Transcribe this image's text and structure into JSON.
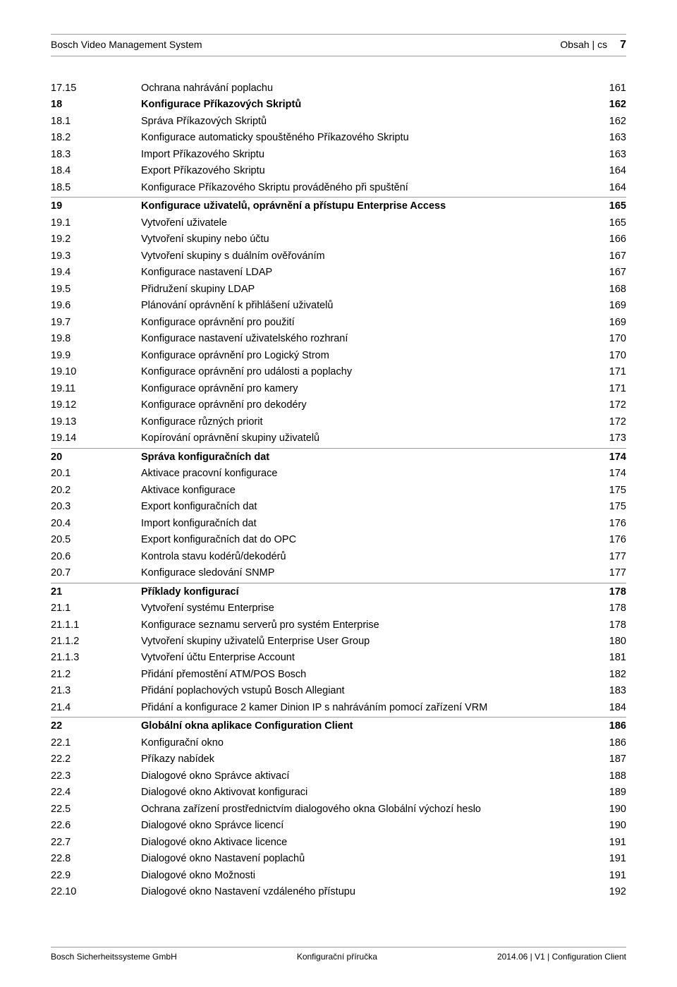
{
  "header": {
    "left": "Bosch Video Management System",
    "right_label": "Obsah | cs",
    "page_number": "7"
  },
  "toc": [
    {
      "num": "17.15",
      "title": "Ochrana nahrávání poplachu",
      "page": "161",
      "bold": false,
      "sep_after": false
    },
    {
      "num": "18",
      "title": "Konfigurace Příkazových Skriptů",
      "page": "162",
      "bold": true,
      "sep_after": false
    },
    {
      "num": "18.1",
      "title": "Správa Příkazových Skriptů",
      "page": "162",
      "bold": false,
      "sep_after": false
    },
    {
      "num": "18.2",
      "title": "Konfigurace automaticky spouštěného Příkazového Skriptu",
      "page": "163",
      "bold": false,
      "sep_after": false
    },
    {
      "num": "18.3",
      "title": "Import Příkazového Skriptu",
      "page": "163",
      "bold": false,
      "sep_after": false
    },
    {
      "num": "18.4",
      "title": "Export Příkazového Skriptu",
      "page": "164",
      "bold": false,
      "sep_after": false
    },
    {
      "num": "18.5",
      "title": "Konfigurace Příkazového Skriptu prováděného při spuštění",
      "page": "164",
      "bold": false,
      "sep_after": true
    },
    {
      "num": "19",
      "title": "Konfigurace uživatelů, oprávnění a přístupu Enterprise Access",
      "page": "165",
      "bold": true,
      "sep_after": false
    },
    {
      "num": "19.1",
      "title": "Vytvoření uživatele",
      "page": "165",
      "bold": false,
      "sep_after": false
    },
    {
      "num": "19.2",
      "title": "Vytvoření skupiny nebo účtu",
      "page": "166",
      "bold": false,
      "sep_after": false
    },
    {
      "num": "19.3",
      "title": "Vytvoření skupiny s duálním ověřováním",
      "page": "167",
      "bold": false,
      "sep_after": false
    },
    {
      "num": "19.4",
      "title": "Konfigurace nastavení LDAP",
      "page": "167",
      "bold": false,
      "sep_after": false
    },
    {
      "num": "19.5",
      "title": "Přidružení skupiny LDAP",
      "page": "168",
      "bold": false,
      "sep_after": false
    },
    {
      "num": "19.6",
      "title": "Plánování oprávnění k přihlášení uživatelů",
      "page": "169",
      "bold": false,
      "sep_after": false
    },
    {
      "num": "19.7",
      "title": "Konfigurace oprávnění pro použití",
      "page": "169",
      "bold": false,
      "sep_after": false
    },
    {
      "num": "19.8",
      "title": "Konfigurace nastavení uživatelského rozhraní",
      "page": "170",
      "bold": false,
      "sep_after": false
    },
    {
      "num": "19.9",
      "title": "Konfigurace oprávnění pro Logický Strom",
      "page": "170",
      "bold": false,
      "sep_after": false
    },
    {
      "num": "19.10",
      "title": "Konfigurace oprávnění pro události a poplachy",
      "page": "171",
      "bold": false,
      "sep_after": false
    },
    {
      "num": "19.11",
      "title": "Konfigurace oprávnění pro kamery",
      "page": "171",
      "bold": false,
      "sep_after": false
    },
    {
      "num": "19.12",
      "title": "Konfigurace oprávnění pro dekodéry",
      "page": "172",
      "bold": false,
      "sep_after": false
    },
    {
      "num": "19.13",
      "title": "Konfigurace různých priorit",
      "page": "172",
      "bold": false,
      "sep_after": false
    },
    {
      "num": "19.14",
      "title": "Kopírování oprávnění skupiny uživatelů",
      "page": "173",
      "bold": false,
      "sep_after": true
    },
    {
      "num": "20",
      "title": "Správa konfiguračních dat",
      "page": "174",
      "bold": true,
      "sep_after": false
    },
    {
      "num": "20.1",
      "title": "Aktivace pracovní konfigurace",
      "page": "174",
      "bold": false,
      "sep_after": false
    },
    {
      "num": "20.2",
      "title": "Aktivace konfigurace",
      "page": "175",
      "bold": false,
      "sep_after": false
    },
    {
      "num": "20.3",
      "title": "Export konfiguračních dat",
      "page": "175",
      "bold": false,
      "sep_after": false
    },
    {
      "num": "20.4",
      "title": "Import konfiguračních dat",
      "page": "176",
      "bold": false,
      "sep_after": false
    },
    {
      "num": "20.5",
      "title": "Export konfiguračních dat do OPC",
      "page": "176",
      "bold": false,
      "sep_after": false
    },
    {
      "num": "20.6",
      "title": "Kontrola stavu kodérů/dekodérů",
      "page": "177",
      "bold": false,
      "sep_after": false
    },
    {
      "num": "20.7",
      "title": "Konfigurace sledování SNMP",
      "page": "177",
      "bold": false,
      "sep_after": true
    },
    {
      "num": "21",
      "title": "Příklady konfigurací",
      "page": "178",
      "bold": true,
      "sep_after": false
    },
    {
      "num": "21.1",
      "title": "Vytvoření systému Enterprise",
      "page": "178",
      "bold": false,
      "sep_after": false
    },
    {
      "num": "21.1.1",
      "title": "Konfigurace seznamu serverů pro systém Enterprise",
      "page": "178",
      "bold": false,
      "sep_after": false
    },
    {
      "num": "21.1.2",
      "title": "Vytvoření skupiny uživatelů Enterprise User Group",
      "page": "180",
      "bold": false,
      "sep_after": false
    },
    {
      "num": "21.1.3",
      "title": "Vytvoření účtu Enterprise Account",
      "page": "181",
      "bold": false,
      "sep_after": false
    },
    {
      "num": "21.2",
      "title": "Přidání přemostění ATM/POS Bosch",
      "page": "182",
      "bold": false,
      "sep_after": false
    },
    {
      "num": "21.3",
      "title": "Přidání poplachových vstupů Bosch Allegiant",
      "page": "183",
      "bold": false,
      "sep_after": false
    },
    {
      "num": "21.4",
      "title": "Přidání a konfigurace 2 kamer Dinion IP s nahráváním pomocí zařízení VRM",
      "page": "184",
      "bold": false,
      "sep_after": true
    },
    {
      "num": "22",
      "title": "Globální okna aplikace Configuration Client",
      "page": "186",
      "bold": true,
      "sep_after": false
    },
    {
      "num": "22.1",
      "title": "Konfigurační okno",
      "page": "186",
      "bold": false,
      "sep_after": false
    },
    {
      "num": "22.2",
      "title": "Příkazy nabídek",
      "page": "187",
      "bold": false,
      "sep_after": false
    },
    {
      "num": "22.3",
      "title": "Dialogové okno Správce aktivací",
      "page": "188",
      "bold": false,
      "sep_after": false
    },
    {
      "num": "22.4",
      "title": "Dialogové okno Aktivovat konfiguraci",
      "page": "189",
      "bold": false,
      "sep_after": false
    },
    {
      "num": "22.5",
      "title": "Ochrana zařízení prostřednictvím dialogového okna Globální výchozí heslo",
      "page": "190",
      "bold": false,
      "sep_after": false
    },
    {
      "num": "22.6",
      "title": "Dialogové okno Správce licencí",
      "page": "190",
      "bold": false,
      "sep_after": false
    },
    {
      "num": "22.7",
      "title": "Dialogové okno Aktivace licence",
      "page": "191",
      "bold": false,
      "sep_after": false
    },
    {
      "num": "22.8",
      "title": "Dialogové okno Nastavení poplachů",
      "page": "191",
      "bold": false,
      "sep_after": false
    },
    {
      "num": "22.9",
      "title": "Dialogové okno Možnosti",
      "page": "191",
      "bold": false,
      "sep_after": false
    },
    {
      "num": "22.10",
      "title": "Dialogové okno Nastavení vzdáleného přístupu",
      "page": "192",
      "bold": false,
      "sep_after": false
    }
  ],
  "footer": {
    "left": "Bosch Sicherheitssysteme GmbH",
    "center": "Konfigurační příručka",
    "right": "2014.06 | V1 | Configuration Client"
  }
}
